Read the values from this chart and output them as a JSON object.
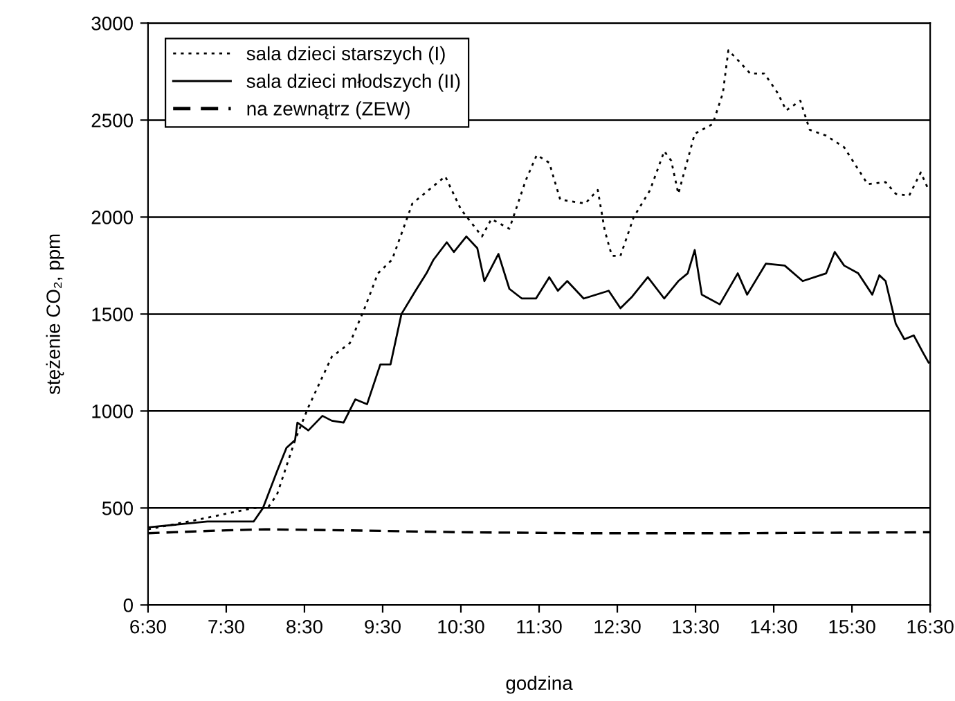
{
  "chart_data": {
    "type": "line",
    "xlabel": "godzina",
    "ylabel": "stężenie CO₂, ppm",
    "xlim": [
      6.5,
      16.5
    ],
    "xticks": [
      {
        "value": 6.5,
        "label": "6:30"
      },
      {
        "value": 7.5,
        "label": "7:30"
      },
      {
        "value": 8.5,
        "label": "8:30"
      },
      {
        "value": 9.5,
        "label": "9:30"
      },
      {
        "value": 10.5,
        "label": "10:30"
      },
      {
        "value": 11.5,
        "label": "11:30"
      },
      {
        "value": 12.5,
        "label": "12:30"
      },
      {
        "value": 13.5,
        "label": "13:30"
      },
      {
        "value": 14.5,
        "label": "14:30"
      },
      {
        "value": 15.5,
        "label": "15:30"
      },
      {
        "value": 16.5,
        "label": "16:30"
      }
    ],
    "ylim": [
      0,
      3000
    ],
    "yticks": [
      0,
      500,
      1000,
      1500,
      2000,
      2500,
      3000
    ],
    "grid": "y",
    "legend": "top left",
    "series": [
      {
        "name": "sala dzieci starszych (I)",
        "color": "#000000",
        "line_style": "dotted",
        "x": [
          6.5,
          7.14,
          7.85,
          8.03,
          8.15,
          8.38,
          8.55,
          8.85,
          9.08,
          9.26,
          9.44,
          9.62,
          9.88,
          10.09,
          10.3,
          10.5,
          10.77,
          10.89,
          11.12,
          11.33,
          11.47,
          11.63,
          11.77,
          12.09,
          12.25,
          12.34,
          12.43,
          12.54,
          12.71,
          12.92,
          13.1,
          13.19,
          13.28,
          13.49,
          13.72,
          13.85,
          13.92,
          14.04,
          14.2,
          14.38,
          14.55,
          14.66,
          14.84,
          14.96,
          15.17,
          15.4,
          15.7,
          15.93,
          16.06,
          16.23,
          16.38,
          16.48
        ],
        "values": [
          390,
          440,
          500,
          500,
          570,
          850,
          1020,
          1280,
          1350,
          1520,
          1710,
          1780,
          2070,
          2140,
          2210,
          2040,
          1900,
          1990,
          1940,
          2190,
          2320,
          2280,
          2090,
          2070,
          2140,
          1930,
          1800,
          1800,
          2000,
          2140,
          2340,
          2290,
          2120,
          2430,
          2480,
          2640,
          2860,
          2810,
          2740,
          2740,
          2640,
          2550,
          2600,
          2450,
          2420,
          2360,
          2170,
          2180,
          2120,
          2110,
          2230,
          2140
        ]
      },
      {
        "name": "sala dzieci młodszych (II)",
        "color": "#000000",
        "line_style": "solid",
        "x": [
          6.5,
          7.26,
          7.85,
          7.97,
          8.15,
          8.27,
          8.38,
          8.41,
          8.55,
          8.73,
          8.85,
          9.0,
          9.15,
          9.3,
          9.47,
          9.6,
          9.74,
          9.92,
          10.06,
          10.15,
          10.32,
          10.41,
          10.57,
          10.71,
          10.8,
          10.98,
          11.12,
          11.28,
          11.46,
          11.63,
          11.74,
          11.86,
          12.07,
          12.39,
          12.54,
          12.69,
          12.89,
          13.1,
          13.28,
          13.4,
          13.49,
          13.58,
          13.81,
          14.04,
          14.16,
          14.4,
          14.64,
          14.87,
          15.17,
          15.28,
          15.4,
          15.58,
          15.76,
          15.85,
          15.93,
          16.06,
          16.17,
          16.29,
          16.41,
          16.48
        ],
        "values": [
          400,
          430,
          430,
          500,
          690,
          810,
          850,
          940,
          900,
          975,
          950,
          940,
          1060,
          1035,
          1240,
          1240,
          1500,
          1620,
          1710,
          1780,
          1870,
          1820,
          1900,
          1840,
          1670,
          1810,
          1630,
          1580,
          1580,
          1690,
          1620,
          1670,
          1580,
          1620,
          1530,
          1590,
          1690,
          1580,
          1670,
          1710,
          1830,
          1600,
          1550,
          1710,
          1600,
          1760,
          1750,
          1670,
          1710,
          1820,
          1750,
          1710,
          1600,
          1700,
          1670,
          1450,
          1370,
          1390,
          1300,
          1250
        ]
      },
      {
        "name": "na zewnątrz (ZEW)",
        "color": "#000000",
        "line_style": "dashed",
        "x": [
          6.5,
          7.5,
          8.0,
          9.0,
          10.5,
          12.0,
          14.0,
          16.5
        ],
        "values": [
          370,
          385,
          390,
          385,
          375,
          370,
          370,
          375
        ]
      }
    ]
  }
}
